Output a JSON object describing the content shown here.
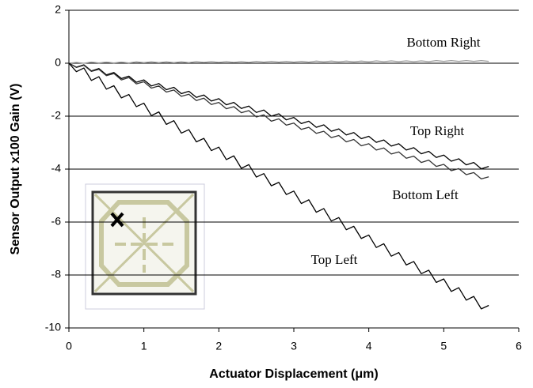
{
  "chart_data": {
    "type": "line",
    "xlabel": "Actuator Displacement (μm)",
    "ylabel": "Sensor Output x100 Gain (V)",
    "xlim": [
      0,
      6
    ],
    "xticks": [
      0,
      1,
      2,
      3,
      4,
      5,
      6
    ],
    "ylim": [
      -10,
      2
    ],
    "yticks": [
      -10,
      -8,
      -6,
      -4,
      -2,
      0,
      2
    ],
    "grid": true,
    "x": [
      0,
      0.1,
      0.2,
      0.3,
      0.4,
      0.5,
      0.6,
      0.7,
      0.8,
      0.9,
      1,
      1.1,
      1.2,
      1.3,
      1.4,
      1.5,
      1.6,
      1.7,
      1.8,
      1.9,
      2,
      2.1,
      2.2,
      2.3,
      2.4,
      2.5,
      2.6,
      2.7,
      2.8,
      2.9,
      3,
      3.1,
      3.2,
      3.3,
      3.4,
      3.5,
      3.6,
      3.7,
      3.8,
      3.9,
      4,
      4.1,
      4.2,
      4.3,
      4.4,
      4.5,
      4.6,
      4.7,
      4.8,
      4.9,
      5,
      5.1,
      5.2,
      5.3,
      5.4,
      5.5,
      5.6
    ],
    "series": [
      {
        "name": "Bottom Right",
        "color": "#9a9a9a",
        "values": [
          0,
          0.03,
          0,
          0.04,
          0.01,
          0.04,
          0.01,
          0.04,
          0.01,
          0.05,
          0.02,
          0.05,
          0.02,
          0.05,
          0.02,
          0.05,
          0.02,
          0.06,
          0.03,
          0.06,
          0.03,
          0.06,
          0.03,
          0.06,
          0.03,
          0.07,
          0.04,
          0.07,
          0.04,
          0.07,
          0.04,
          0.07,
          0.04,
          0.08,
          0.05,
          0.08,
          0.05,
          0.08,
          0.05,
          0.08,
          0.05,
          0.09,
          0.06,
          0.09,
          0.06,
          0.09,
          0.06,
          0.09,
          0.06,
          0.1,
          0.07,
          0.1,
          0.07,
          0.1,
          0.07,
          0.1,
          0.07
        ]
      },
      {
        "name": "Top Right",
        "color": "#000000",
        "values": [
          0,
          -0.15,
          -0.06,
          -0.29,
          -0.2,
          -0.44,
          -0.35,
          -0.58,
          -0.49,
          -0.72,
          -0.63,
          -0.86,
          -0.77,
          -1,
          -0.91,
          -1.15,
          -1.06,
          -1.29,
          -1.2,
          -1.43,
          -1.34,
          -1.57,
          -1.48,
          -1.71,
          -1.62,
          -1.86,
          -1.77,
          -2,
          -1.91,
          -2.14,
          -2.05,
          -2.28,
          -2.19,
          -2.42,
          -2.33,
          -2.57,
          -2.48,
          -2.71,
          -2.62,
          -2.85,
          -2.76,
          -2.99,
          -2.9,
          -3.13,
          -3.04,
          -3.28,
          -3.19,
          -3.42,
          -3.33,
          -3.56,
          -3.47,
          -3.7,
          -3.61,
          -3.84,
          -3.75,
          -3.99,
          -3.9
        ]
      },
      {
        "name": "Bottom Left",
        "color": "#333333",
        "values": [
          0,
          -0.16,
          -0.08,
          -0.31,
          -0.23,
          -0.47,
          -0.39,
          -0.63,
          -0.54,
          -0.78,
          -0.7,
          -0.94,
          -0.86,
          -1.09,
          -1.01,
          -1.25,
          -1.17,
          -1.41,
          -1.32,
          -1.56,
          -1.48,
          -1.72,
          -1.64,
          -1.87,
          -1.79,
          -2.03,
          -1.95,
          -2.19,
          -2.1,
          -2.34,
          -2.26,
          -2.5,
          -2.42,
          -2.65,
          -2.57,
          -2.81,
          -2.73,
          -2.97,
          -2.88,
          -3.12,
          -3.04,
          -3.28,
          -3.2,
          -3.43,
          -3.35,
          -3.59,
          -3.51,
          -3.75,
          -3.66,
          -3.9,
          -3.82,
          -4.06,
          -3.98,
          -4.21,
          -4.13,
          -4.37,
          -4.29
        ]
      },
      {
        "name": "Top Left",
        "color": "#000000",
        "values": [
          0,
          -0.32,
          -0.18,
          -0.65,
          -0.51,
          -0.98,
          -0.85,
          -1.31,
          -1.18,
          -1.64,
          -1.51,
          -1.98,
          -1.84,
          -2.31,
          -2.17,
          -2.64,
          -2.51,
          -2.97,
          -2.84,
          -3.3,
          -3.17,
          -3.64,
          -3.5,
          -3.97,
          -3.83,
          -4.3,
          -4.17,
          -4.63,
          -4.5,
          -4.96,
          -4.83,
          -5.3,
          -5.16,
          -5.63,
          -5.49,
          -5.96,
          -5.83,
          -6.29,
          -6.16,
          -6.62,
          -6.49,
          -6.96,
          -6.82,
          -7.29,
          -7.15,
          -7.62,
          -7.49,
          -7.95,
          -7.82,
          -8.28,
          -8.15,
          -8.62,
          -8.48,
          -8.95,
          -8.81,
          -9.28,
          -9.15
        ]
      }
    ]
  }
}
